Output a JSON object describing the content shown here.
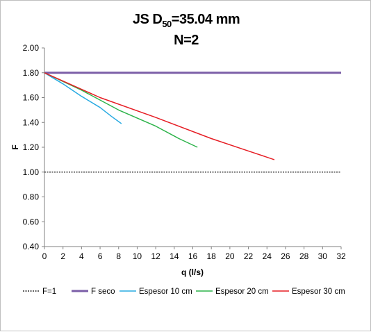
{
  "chart_data": {
    "type": "line",
    "title_prefix": "JS D",
    "title_subscript": "50",
    "title_suffix": "=35.04 mm",
    "subtitle": "N=2",
    "xlabel": "q (l/s)",
    "ylabel": "F",
    "xlim": [
      0,
      32
    ],
    "ylim": [
      0.4,
      2.0
    ],
    "x_ticks": [
      "0",
      "2",
      "4",
      "6",
      "8",
      "10",
      "12",
      "14",
      "16",
      "18",
      "20",
      "22",
      "24",
      "26",
      "28",
      "30",
      "32"
    ],
    "y_ticks": [
      "0.40",
      "0.60",
      "0.80",
      "1.00",
      "1.20",
      "1.40",
      "1.60",
      "1.80",
      "2.00"
    ],
    "grid": false,
    "legend_position": "bottom",
    "series": [
      {
        "name": "F=1",
        "color": "#000000",
        "dashed": true,
        "width": 1.2,
        "points": [
          [
            0,
            1.0
          ],
          [
            32,
            1.0
          ]
        ]
      },
      {
        "name": "F seco",
        "color": "#7b5ea7",
        "dashed": false,
        "width": 3,
        "points": [
          [
            0,
            1.8
          ],
          [
            32,
            1.8
          ]
        ]
      },
      {
        "name": "Espesor 10 cm",
        "color": "#29abe2",
        "dashed": false,
        "width": 1.5,
        "points": [
          [
            0,
            1.8
          ],
          [
            2,
            1.71
          ],
          [
            4,
            1.61
          ],
          [
            6,
            1.52
          ],
          [
            7.2,
            1.45
          ],
          [
            8.3,
            1.39
          ]
        ]
      },
      {
        "name": "Espesor 20 cm",
        "color": "#2db34a",
        "dashed": false,
        "width": 1.5,
        "points": [
          [
            0,
            1.8
          ],
          [
            4,
            1.66
          ],
          [
            8,
            1.5
          ],
          [
            12,
            1.37
          ],
          [
            14.5,
            1.27
          ],
          [
            16.5,
            1.2
          ]
        ]
      },
      {
        "name": "Espesor 30 cm",
        "color": "#e61e25",
        "dashed": false,
        "width": 1.5,
        "points": [
          [
            0,
            1.8
          ],
          [
            6,
            1.6
          ],
          [
            12,
            1.44
          ],
          [
            18,
            1.27
          ],
          [
            22,
            1.17
          ],
          [
            24.8,
            1.1
          ]
        ]
      }
    ]
  }
}
